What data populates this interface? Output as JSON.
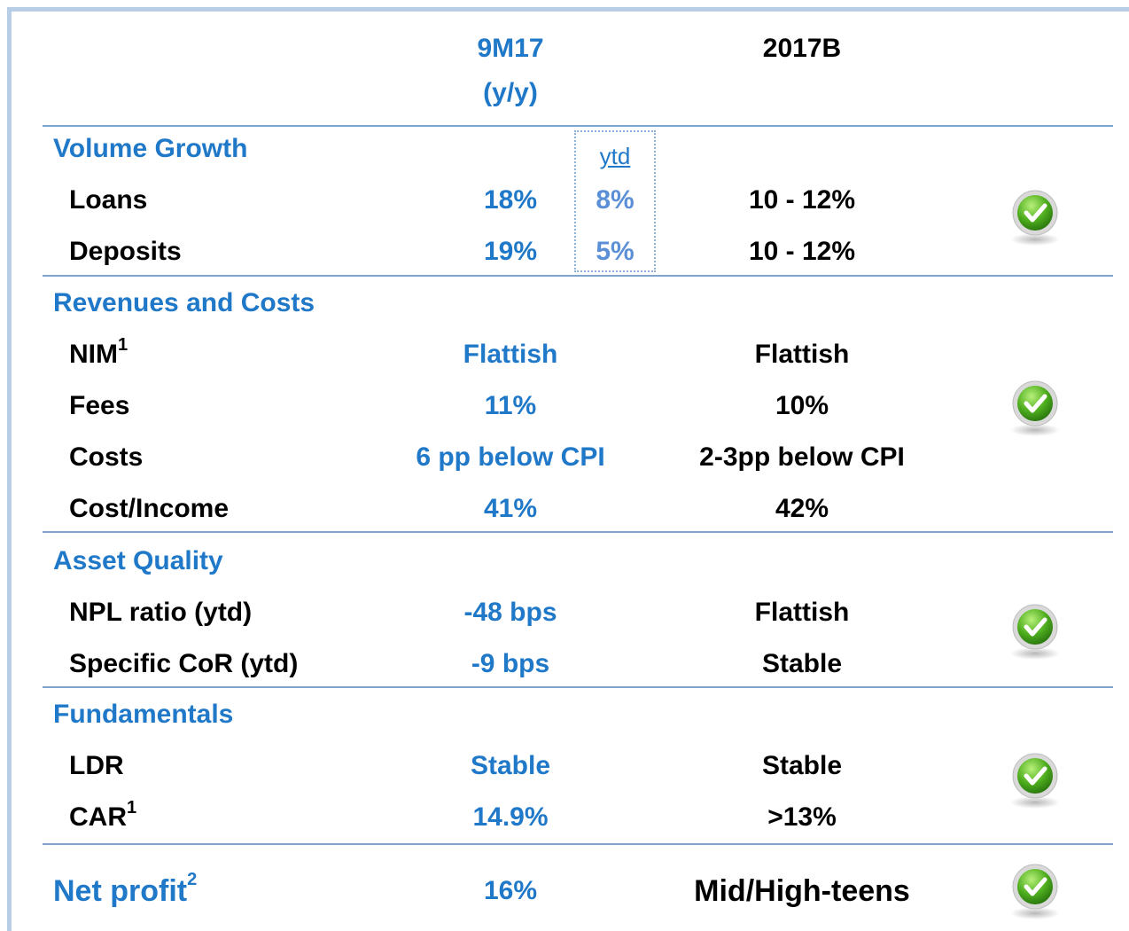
{
  "header": {
    "col1": [
      "9M17",
      "(y/y)"
    ],
    "col2": "2017B"
  },
  "sections": [
    {
      "title": "Volume Growth",
      "ytd_label": "ytd",
      "rows": [
        {
          "label": "Loans",
          "col1": "18%",
          "ytd": "8%",
          "col2": "10 - 12%"
        },
        {
          "label": "Deposits",
          "col1": "19%",
          "ytd": "5%",
          "col2": "10 - 12%"
        }
      ]
    },
    {
      "title": "Revenues and Costs",
      "rows": [
        {
          "label": "NIM",
          "sup": "1",
          "col1": "Flattish",
          "col2": "Flattish"
        },
        {
          "label": "Fees",
          "col1": "11%",
          "col2": "10%"
        },
        {
          "label": "Costs",
          "col1": "6 pp below CPI",
          "col2": "2-3pp below CPI"
        },
        {
          "label": "Cost/Income",
          "col1": "41%",
          "col2": "42%"
        }
      ]
    },
    {
      "title": "Asset Quality",
      "rows": [
        {
          "label": "NPL ratio (ytd)",
          "col1": "-48 bps",
          "col2": "Flattish"
        },
        {
          "label": "Specific CoR (ytd)",
          "col1": "-9 bps",
          "col2": "Stable"
        }
      ]
    },
    {
      "title": "Fundamentals",
      "rows": [
        {
          "label": "LDR",
          "col1": "Stable",
          "col2": "Stable"
        },
        {
          "label": "CAR",
          "sup": "1",
          "col1": "14.9%",
          "col2": ">13%"
        }
      ]
    }
  ],
  "net_profit": {
    "label": "Net profit",
    "sup": "2",
    "col1": "16%",
    "col2": "Mid/High-teens"
  }
}
